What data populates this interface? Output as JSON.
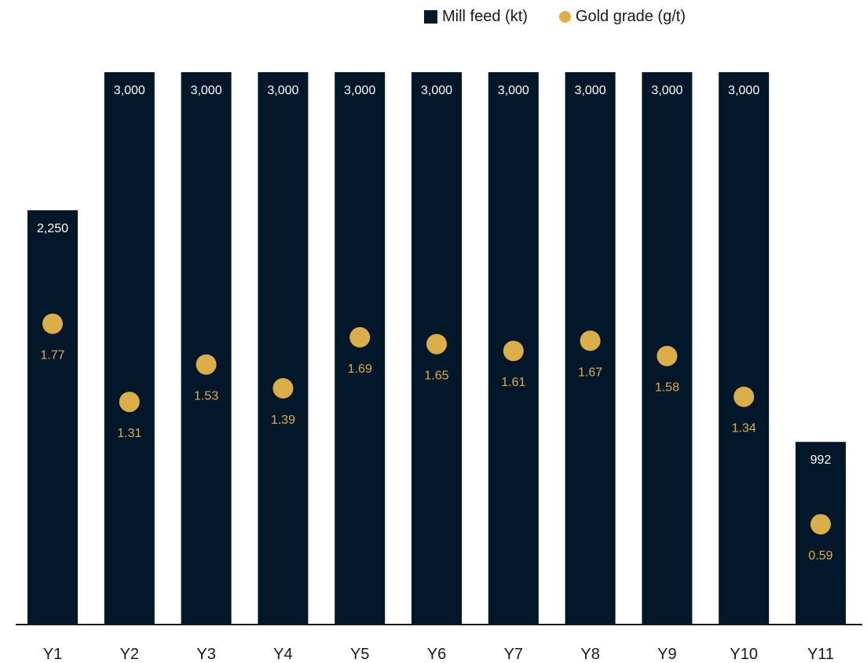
{
  "legend": {
    "mill_feed": "Mill feed (kt)",
    "gold_grade": "Gold grade (g/t)"
  },
  "colors": {
    "bar": "#03172A",
    "dot": "#DBAE49",
    "axis": "#1a1a1a",
    "bar_label": "#ffffff",
    "tick_label": "#1a1a1a"
  },
  "chart_data": {
    "type": "bar",
    "categories": [
      "Y1",
      "Y2",
      "Y3",
      "Y4",
      "Y5",
      "Y6",
      "Y7",
      "Y8",
      "Y9",
      "Y10",
      "Y11"
    ],
    "series": [
      {
        "name": "Mill feed (kt)",
        "type": "bar",
        "values": [
          2250,
          3000,
          3000,
          3000,
          3000,
          3000,
          3000,
          3000,
          3000,
          3000,
          992
        ],
        "labels": [
          "2,250",
          "3,000",
          "3,000",
          "3,000",
          "3,000",
          "3,000",
          "3,000",
          "3,000",
          "3,000",
          "3,000",
          "992"
        ]
      },
      {
        "name": "Gold grade (g/t)",
        "type": "scatter",
        "values": [
          1.77,
          1.31,
          1.53,
          1.39,
          1.69,
          1.65,
          1.61,
          1.67,
          1.58,
          1.34,
          0.59
        ],
        "labels": [
          "1.77",
          "1.31",
          "1.53",
          "1.39",
          "1.69",
          "1.65",
          "1.61",
          "1.67",
          "1.58",
          "1.34",
          "0.59"
        ]
      }
    ],
    "ylim_bars": [
      0,
      3000
    ],
    "ylim_grade": [
      0,
      3.25
    ],
    "legend_position": "top-right",
    "grid": false
  }
}
